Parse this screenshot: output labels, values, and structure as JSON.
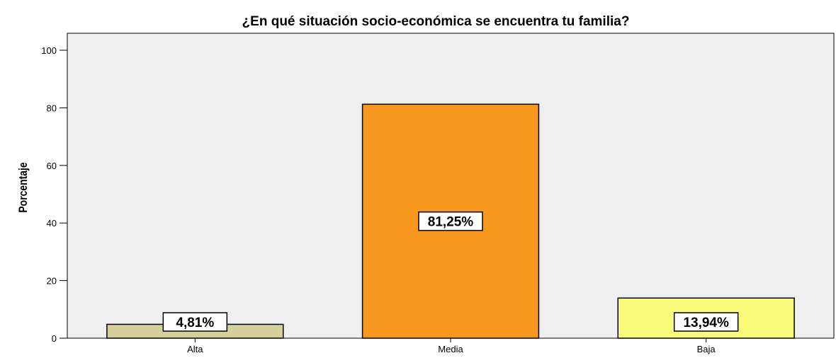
{
  "chart_data": {
    "type": "bar",
    "title": "¿En qué situación socio-económica se encuentra tu familia?",
    "xlabel": "",
    "ylabel": "Porcentaje",
    "categories": [
      "Alta",
      "Media",
      "Baja"
    ],
    "values": [
      4.81,
      81.25,
      13.94
    ],
    "data_labels": [
      "4,81%",
      "81,25%",
      "13,94%"
    ],
    "bar_colors": [
      "#d6cf99",
      "#f7971e",
      "#fafa7a"
    ],
    "plot_background": "#efefef",
    "ylim": [
      0,
      100
    ],
    "yticks": [
      0,
      20,
      40,
      60,
      80,
      100
    ],
    "grid": false,
    "legend": "none"
  }
}
